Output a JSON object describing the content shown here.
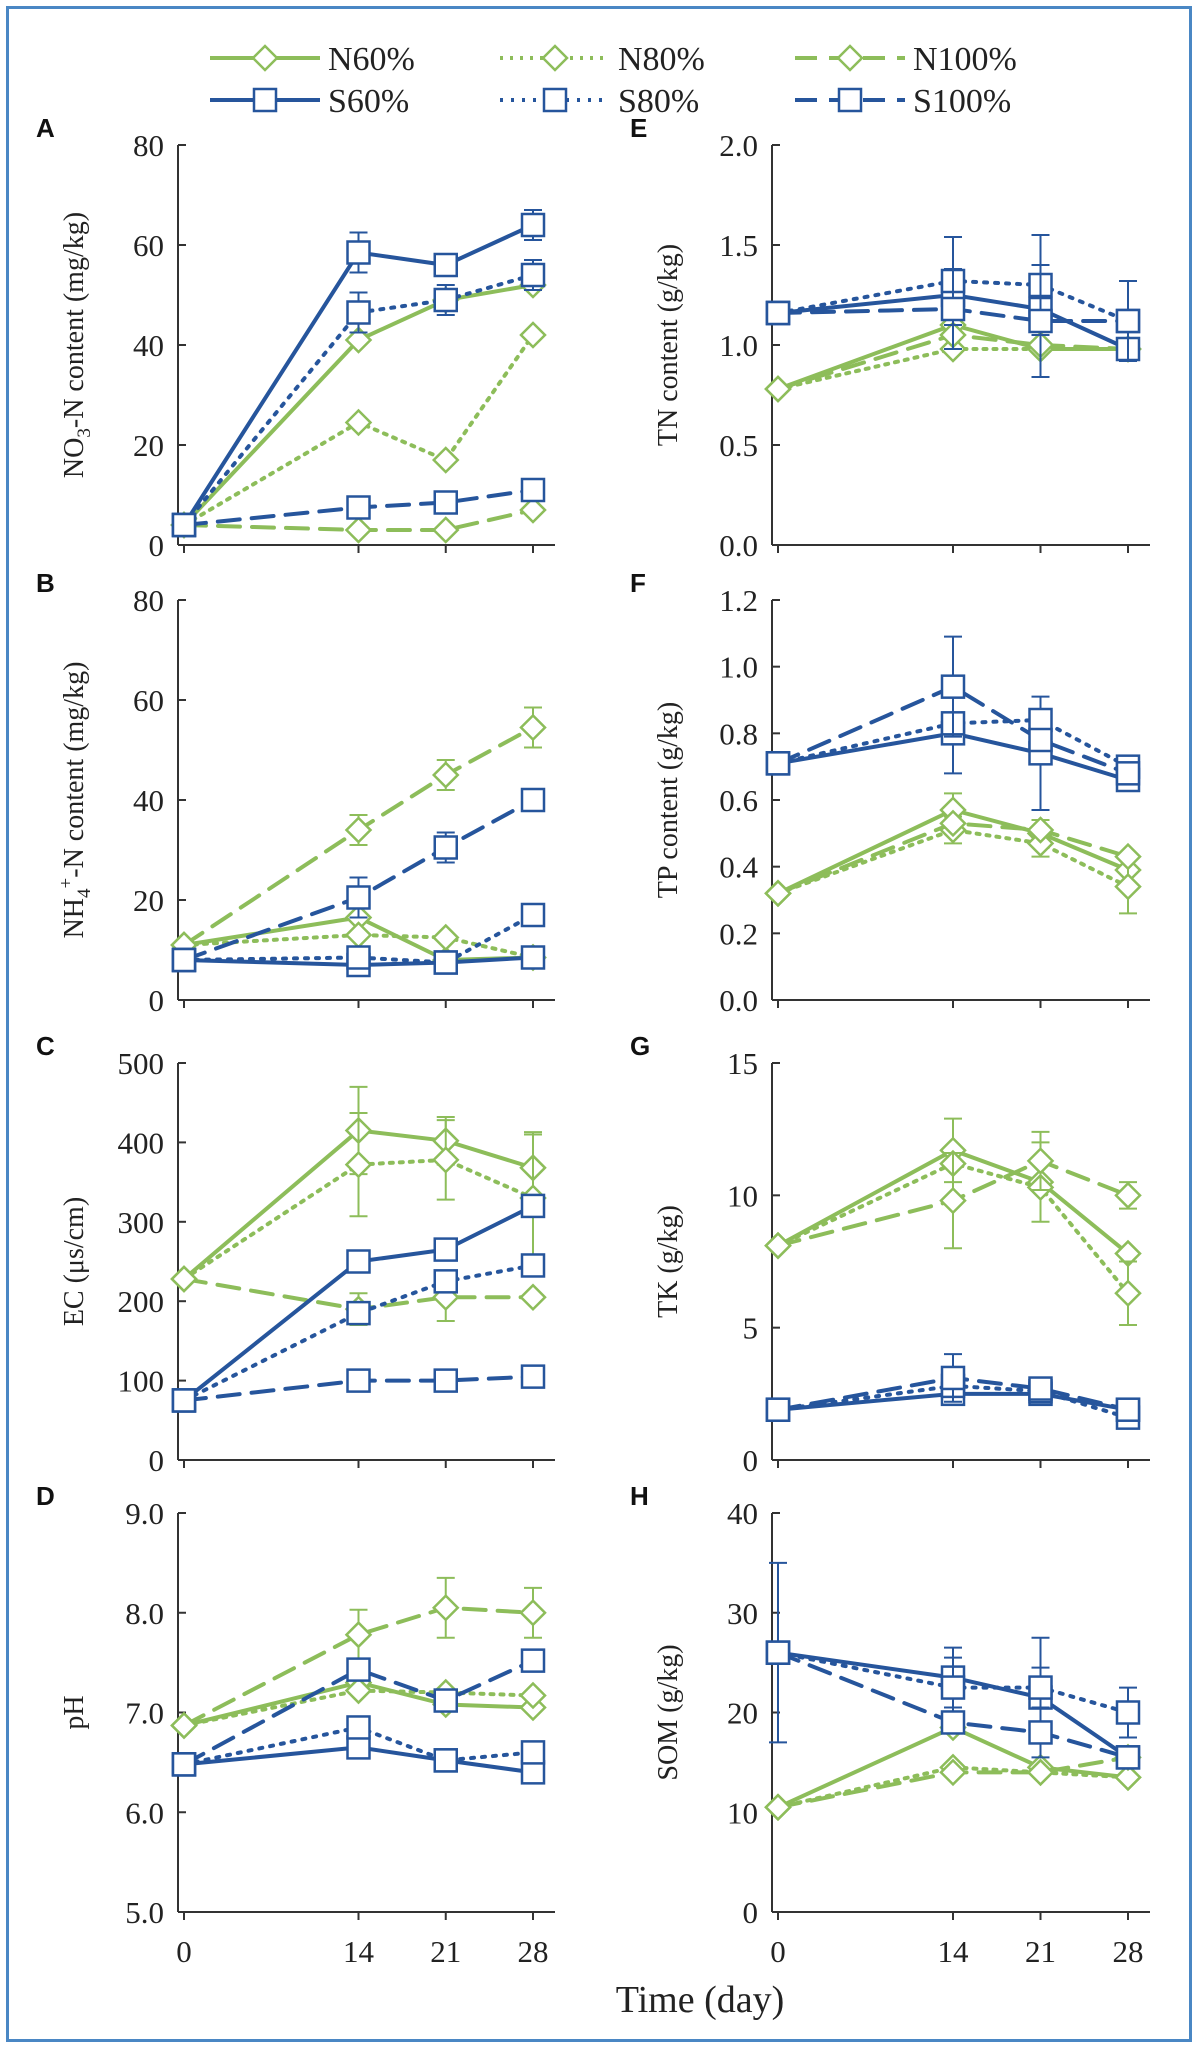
{
  "styles": {
    "N60%": {
      "color": "#8dbd5a",
      "dash": "none",
      "marker": "diamond"
    },
    "N80%": {
      "color": "#8dbd5a",
      "dash": "3,7",
      "marker": "diamond"
    },
    "N100%": {
      "color": "#8dbd5a",
      "dash": "22,12",
      "marker": "diamond"
    },
    "S60%": {
      "color": "#26559c",
      "dash": "none",
      "marker": "square"
    },
    "S80%": {
      "color": "#26559c",
      "dash": "3,8",
      "marker": "square"
    },
    "S100%": {
      "color": "#26559c",
      "dash": "22,12",
      "marker": "square"
    }
  },
  "legend": [
    "N60%",
    "N80%",
    "N100%",
    "S60%",
    "S80%",
    "S100%"
  ],
  "x_axis_label": "Time (day)",
  "chart_data": [
    {
      "type": "line",
      "panel": "A",
      "ylabel": "NO3-N content (mg/kg)",
      "ylabel_sub": "3",
      "ylabel_pre": "NO",
      "ylabel_post": "-N content (mg/kg)",
      "x": [
        0,
        14,
        21,
        28
      ],
      "xticks": [
        "0",
        "14",
        "21",
        "28"
      ],
      "ylim": [
        0,
        80
      ],
      "yticks": [
        "0",
        "20",
        "40",
        "60",
        "80"
      ],
      "series": [
        {
          "name": "N60%",
          "values": [
            4,
            41,
            49,
            52
          ]
        },
        {
          "name": "N80%",
          "values": [
            4,
            24.5,
            17,
            42
          ]
        },
        {
          "name": "N100%",
          "values": [
            4,
            3,
            3,
            7
          ]
        },
        {
          "name": "S60%",
          "values": [
            4,
            58.5,
            56,
            64
          ],
          "err": [
            0,
            4,
            0,
            3
          ]
        },
        {
          "name": "S80%",
          "values": [
            4,
            46.5,
            49,
            54
          ],
          "err": [
            0,
            4,
            3,
            3
          ]
        },
        {
          "name": "S100%",
          "values": [
            4,
            7.5,
            8.5,
            11
          ]
        }
      ]
    },
    {
      "type": "line",
      "panel": "E",
      "ylabel": "TN content (g/kg)",
      "x": [
        0,
        14,
        21,
        28
      ],
      "xticks": [
        "0",
        "14",
        "21",
        "28"
      ],
      "ylim": [
        0,
        2
      ],
      "yticks": [
        "0.0",
        "0.5",
        "1.0",
        "1.5",
        "2.0"
      ],
      "series": [
        {
          "name": "N60%",
          "values": [
            0.78,
            1.1,
            0.98,
            0.98
          ]
        },
        {
          "name": "N80%",
          "values": [
            0.78,
            0.98,
            0.98,
            0.98
          ]
        },
        {
          "name": "N100%",
          "values": [
            0.78,
            1.05,
            1.0,
            0.98
          ]
        },
        {
          "name": "S60%",
          "values": [
            1.16,
            1.25,
            1.18,
            0.98
          ]
        },
        {
          "name": "S80%",
          "values": [
            1.16,
            1.32,
            1.3,
            1.12
          ],
          "err": [
            0,
            0.22,
            0.25,
            0.2
          ]
        },
        {
          "name": "S100%",
          "values": [
            1.16,
            1.18,
            1.12,
            1.12
          ],
          "err": [
            0,
            0.2,
            0.28,
            0
          ]
        }
      ]
    },
    {
      "type": "line",
      "panel": "B",
      "ylabel": "NH4+-N content (mg/kg)",
      "ylabel_sub": "4",
      "ylabel_sup": "+",
      "ylabel_pre": "NH",
      "ylabel_post": "-N content (mg/kg)",
      "x": [
        0,
        14,
        21,
        28
      ],
      "xticks": [
        "0",
        "14",
        "21",
        "28"
      ],
      "ylim": [
        0,
        80
      ],
      "yticks": [
        "0",
        "20",
        "40",
        "60",
        "80"
      ],
      "series": [
        {
          "name": "N60%",
          "values": [
            11,
            16.5,
            8,
            8.5
          ]
        },
        {
          "name": "N80%",
          "values": [
            11,
            13,
            12.5,
            8.5
          ]
        },
        {
          "name": "N100%",
          "values": [
            11,
            34,
            45,
            54.5
          ],
          "err": [
            0,
            3,
            3,
            4
          ]
        },
        {
          "name": "S60%",
          "values": [
            8,
            7,
            7.5,
            8.5
          ]
        },
        {
          "name": "S80%",
          "values": [
            8,
            8.5,
            7.5,
            17
          ]
        },
        {
          "name": "S100%",
          "values": [
            8,
            20.5,
            30.5,
            40
          ],
          "err": [
            0,
            4,
            3,
            2
          ]
        }
      ]
    },
    {
      "type": "line",
      "panel": "F",
      "ylabel": "TP content (g/kg)",
      "x": [
        0,
        14,
        21,
        28
      ],
      "xticks": [
        "0",
        "14",
        "21",
        "28"
      ],
      "ylim": [
        0,
        1.2
      ],
      "yticks": [
        "0.0",
        "0.2",
        "0.4",
        "0.6",
        "0.8",
        "1.0",
        "1.2"
      ],
      "series": [
        {
          "name": "N60%",
          "values": [
            0.32,
            0.57,
            0.5,
            0.39
          ],
          "err": [
            0,
            0.05,
            0.04,
            0.04
          ]
        },
        {
          "name": "N80%",
          "values": [
            0.32,
            0.51,
            0.47,
            0.34
          ],
          "err": [
            0,
            0.04,
            0.04,
            0.08
          ]
        },
        {
          "name": "N100%",
          "values": [
            0.32,
            0.53,
            0.51,
            0.43
          ]
        },
        {
          "name": "S60%",
          "values": [
            0.71,
            0.8,
            0.74,
            0.66
          ],
          "err": [
            0,
            0.12,
            0.17,
            0
          ]
        },
        {
          "name": "S80%",
          "values": [
            0.71,
            0.83,
            0.84,
            0.7
          ]
        },
        {
          "name": "S100%",
          "values": [
            0.71,
            0.94,
            0.78,
            0.68
          ],
          "err": [
            0,
            0.15,
            0,
            0
          ]
        }
      ]
    },
    {
      "type": "line",
      "panel": "C",
      "ylabel": "EC (μs/cm)",
      "x": [
        0,
        14,
        21,
        28
      ],
      "xticks": [
        "0",
        "14",
        "21",
        "28"
      ],
      "ylim": [
        0,
        500
      ],
      "yticks": [
        "0",
        "100",
        "200",
        "300",
        "400",
        "500"
      ],
      "series": [
        {
          "name": "N60%",
          "values": [
            228,
            415,
            402,
            368
          ],
          "err": [
            0,
            55,
            30,
            45
          ]
        },
        {
          "name": "N80%",
          "values": [
            228,
            372,
            378,
            330
          ],
          "err": [
            0,
            65,
            50,
            80
          ]
        },
        {
          "name": "N100%",
          "values": [
            228,
            190,
            205,
            205
          ],
          "err": [
            0,
            20,
            30,
            0
          ]
        },
        {
          "name": "S60%",
          "values": [
            75,
            250,
            265,
            320
          ]
        },
        {
          "name": "S80%",
          "values": [
            75,
            185,
            225,
            245
          ]
        },
        {
          "name": "S100%",
          "values": [
            75,
            100,
            100,
            105
          ]
        }
      ]
    },
    {
      "type": "line",
      "panel": "G",
      "ylabel": "TK (g/kg)",
      "x": [
        0,
        14,
        21,
        28
      ],
      "xticks": [
        "0",
        "14",
        "21",
        "28"
      ],
      "ylim": [
        0,
        15
      ],
      "yticks": [
        "0",
        "5",
        "10",
        "15"
      ],
      "series": [
        {
          "name": "N60%",
          "values": [
            8.1,
            11.7,
            10.5,
            7.8
          ],
          "err": [
            0,
            1.2,
            1.5,
            0
          ]
        },
        {
          "name": "N80%",
          "values": [
            8.1,
            11.2,
            10.3,
            6.3
          ],
          "err": [
            0,
            0,
            0,
            1.2
          ]
        },
        {
          "name": "N100%",
          "values": [
            8.1,
            9.8,
            11.3,
            10
          ],
          "err": [
            0,
            1.8,
            1.1,
            0.5
          ]
        },
        {
          "name": "S60%",
          "values": [
            1.9,
            2.5,
            2.5,
            1.9
          ]
        },
        {
          "name": "S80%",
          "values": [
            1.9,
            2.8,
            2.6,
            1.6
          ]
        },
        {
          "name": "S100%",
          "values": [
            1.9,
            3.1,
            2.7,
            1.9
          ],
          "err": [
            0,
            0.9,
            0.4,
            0.3
          ]
        }
      ]
    },
    {
      "type": "line",
      "panel": "D",
      "ylabel": "pH",
      "x": [
        0,
        14,
        21,
        28
      ],
      "xticks": [
        "0",
        "14",
        "21",
        "28"
      ],
      "ylim": [
        5,
        9
      ],
      "yticks": [
        "5.0",
        "6.0",
        "7.0",
        "8.0",
        "9.0"
      ],
      "series": [
        {
          "name": "N60%",
          "values": [
            6.87,
            7.3,
            7.08,
            7.05
          ]
        },
        {
          "name": "N80%",
          "values": [
            6.87,
            7.22,
            7.2,
            7.17
          ]
        },
        {
          "name": "N100%",
          "values": [
            6.87,
            7.78,
            8.05,
            8.0
          ],
          "err": [
            0,
            0.25,
            0.3,
            0.25
          ]
        },
        {
          "name": "S60%",
          "values": [
            6.48,
            6.65,
            6.52,
            6.4
          ]
        },
        {
          "name": "S80%",
          "values": [
            6.48,
            6.85,
            6.52,
            6.6
          ]
        },
        {
          "name": "S100%",
          "values": [
            6.48,
            7.43,
            7.12,
            7.52
          ]
        }
      ]
    },
    {
      "type": "line",
      "panel": "H",
      "ylabel": "SOM (g/kg)",
      "x": [
        0,
        14,
        21,
        28
      ],
      "xticks": [
        "0",
        "14",
        "21",
        "28"
      ],
      "ylim": [
        0,
        40
      ],
      "yticks": [
        "0",
        "10",
        "20",
        "30",
        "40"
      ],
      "series": [
        {
          "name": "N60%",
          "values": [
            10.5,
            18.5,
            14.5,
            13.5
          ]
        },
        {
          "name": "N80%",
          "values": [
            10.5,
            14.5,
            14,
            13.5
          ]
        },
        {
          "name": "N100%",
          "values": [
            10.5,
            14,
            14,
            15.5
          ]
        },
        {
          "name": "S60%",
          "values": [
            26,
            23.5,
            21.5,
            15.5
          ],
          "err": [
            0,
            3,
            6,
            0
          ]
        },
        {
          "name": "S80%",
          "values": [
            26,
            22.5,
            22.5,
            20
          ],
          "err": [
            9,
            3,
            2,
            2.5
          ]
        },
        {
          "name": "S100%",
          "values": [
            26,
            19,
            18,
            15.5
          ]
        }
      ]
    }
  ]
}
